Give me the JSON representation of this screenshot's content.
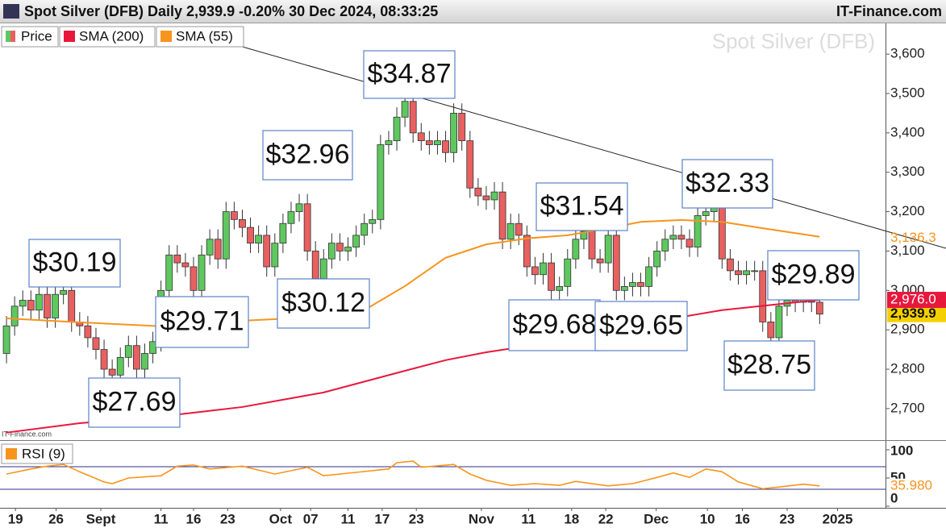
{
  "header": {
    "title": "Spot Silver (DFB) Daily 2,939.9 -0.20% 30 Dec 2024, 08:33:25",
    "brand": "IT-Finance.com"
  },
  "chart_data": [
    {
      "type": "candlestick",
      "watermark": "Spot Silver (DFB)",
      "credit": "IT-Finance.com",
      "up_color": "#5ec85e",
      "down_color": "#e86060",
      "xlim": [
        -0.8,
        108.1
      ],
      "ylim": [
        2622,
        3676
      ],
      "xticks": [
        {
          "value": 1.1,
          "label": "19"
        },
        {
          "value": 6.1,
          "label": "26"
        },
        {
          "value": 11.6,
          "label": "Sept"
        },
        {
          "value": 19,
          "label": "11"
        },
        {
          "value": 23,
          "label": "16"
        },
        {
          "value": 27.2,
          "label": "23"
        },
        {
          "value": 33.7,
          "label": "Oct"
        },
        {
          "value": 37.4,
          "label": "07"
        },
        {
          "value": 42,
          "label": "11"
        },
        {
          "value": 46.2,
          "label": "17"
        },
        {
          "value": 50.4,
          "label": "23"
        },
        {
          "value": 58.4,
          "label": "Nov"
        },
        {
          "value": 64.2,
          "label": "11"
        },
        {
          "value": 69.5,
          "label": "18"
        },
        {
          "value": 73.7,
          "label": "22"
        },
        {
          "value": 79.9,
          "label": "Dec"
        },
        {
          "value": 86.2,
          "label": "10"
        },
        {
          "value": 90.5,
          "label": "16"
        },
        {
          "value": 96,
          "label": "23"
        },
        {
          "value": 102.2,
          "label": "2025"
        }
      ],
      "yticks": [
        {
          "value": 2700,
          "label": "2,700"
        },
        {
          "value": 2800,
          "label": "2,800"
        },
        {
          "value": 2900,
          "label": "2,900"
        },
        {
          "value": 3000,
          "label": "3,000"
        },
        {
          "value": 3100,
          "label": "3,100"
        },
        {
          "value": 3200,
          "label": "3,200"
        },
        {
          "value": 3300,
          "label": "3,300"
        },
        {
          "value": 3400,
          "label": "3,400"
        },
        {
          "value": 3500,
          "label": "3,500"
        },
        {
          "value": 3600,
          "label": "3,600"
        }
      ],
      "series": [
        {
          "name": "Price",
          "color": "#f5d000",
          "end_label": "2,939.9",
          "x": [
            0,
            1,
            2,
            3,
            4,
            5,
            6,
            7,
            8,
            9,
            10,
            11,
            12,
            13,
            14,
            15,
            16,
            17,
            18,
            19,
            20,
            21,
            22,
            23,
            24,
            25,
            26,
            27,
            28,
            29,
            30,
            31,
            32,
            33,
            34,
            35,
            36,
            37,
            38,
            39,
            40,
            41,
            42,
            43,
            44,
            45,
            46,
            47,
            48,
            49,
            50,
            51,
            52,
            53,
            54,
            55,
            56,
            57,
            58,
            59,
            60,
            61,
            62,
            63,
            64,
            65,
            66,
            67,
            68,
            69,
            70,
            71,
            72,
            73,
            74,
            75,
            76,
            77,
            78,
            79,
            80,
            81,
            82,
            83,
            84,
            85,
            86,
            87,
            88,
            89,
            90,
            91,
            92,
            93,
            94,
            95,
            96,
            97,
            98,
            99,
            100
          ],
          "open": [
            2840,
            2910,
            2960,
            2975,
            2950,
            2990,
            2930,
            2990,
            3000,
            2920,
            2910,
            2880,
            2850,
            2800,
            2785,
            2830,
            2860,
            2800,
            2840,
            2870,
            3000,
            3090,
            3070,
            3060,
            3000,
            3090,
            3130,
            3080,
            3200,
            3180,
            3160,
            3120,
            3140,
            3060,
            3120,
            3170,
            3200,
            3220,
            3100,
            3030,
            3080,
            3120,
            3100,
            3110,
            3140,
            3170,
            3180,
            3370,
            3380,
            3440,
            3480,
            3400,
            3380,
            3370,
            3380,
            3350,
            3450,
            3380,
            3260,
            3240,
            3230,
            3250,
            3130,
            3170,
            3140,
            3060,
            3040,
            3070,
            3000,
            3010,
            3080,
            3130,
            3150,
            3080,
            3070,
            3140,
            3000,
            3010,
            3020,
            3010,
            3060,
            3100,
            3130,
            3140,
            3130,
            3110,
            3190,
            3200,
            3210,
            3080,
            3050,
            3040,
            3050,
            3050,
            2920,
            2880,
            2960,
            2975,
            2970,
            2980,
            2970
          ],
          "high": [
            2935,
            2985,
            3000,
            3000,
            3015,
            3015,
            3015,
            3025,
            3025,
            2945,
            2935,
            2905,
            2875,
            2825,
            2855,
            2885,
            2885,
            2865,
            2895,
            3025,
            3115,
            3115,
            3095,
            3085,
            3115,
            3155,
            3155,
            3225,
            3225,
            3205,
            3185,
            3165,
            3165,
            3145,
            3195,
            3225,
            3245,
            3245,
            3125,
            3105,
            3145,
            3145,
            3135,
            3165,
            3195,
            3205,
            3395,
            3405,
            3465,
            3505,
            3505,
            3425,
            3405,
            3405,
            3405,
            3475,
            3475,
            3405,
            3285,
            3265,
            3275,
            3275,
            3195,
            3195,
            3165,
            3085,
            3095,
            3095,
            3035,
            3105,
            3155,
            3175,
            3175,
            3105,
            3165,
            3165,
            3035,
            3045,
            3045,
            3085,
            3125,
            3155,
            3165,
            3165,
            3155,
            3215,
            3225,
            3235,
            3235,
            3105,
            3075,
            3075,
            3075,
            3075,
            2945,
            2985,
            3000,
            3000,
            3005,
            3005,
            2995
          ],
          "low": [
            2815,
            2885,
            2935,
            2925,
            2925,
            2905,
            2905,
            2965,
            2895,
            2885,
            2855,
            2825,
            2775,
            2760,
            2760,
            2805,
            2775,
            2775,
            2815,
            2845,
            2975,
            3045,
            3035,
            2975,
            2975,
            3065,
            3055,
            3055,
            3155,
            3135,
            3095,
            3095,
            3035,
            3035,
            3095,
            3145,
            3175,
            3075,
            3005,
            3005,
            3055,
            3075,
            3075,
            3085,
            3115,
            3145,
            3155,
            3345,
            3355,
            3415,
            3375,
            3355,
            3345,
            3345,
            3325,
            3325,
            3355,
            3235,
            3215,
            3205,
            3205,
            3105,
            3105,
            3115,
            3035,
            3015,
            3015,
            2975,
            2975,
            2985,
            3055,
            3105,
            3055,
            3045,
            3045,
            2975,
            2975,
            2985,
            2985,
            2985,
            3035,
            3075,
            3105,
            3105,
            3085,
            3085,
            3165,
            3175,
            3055,
            3025,
            3015,
            3015,
            3025,
            2895,
            2855,
            2855,
            2935,
            2945,
            2945,
            2945,
            2914.9
          ],
          "close": [
            2910,
            2960,
            2975,
            2950,
            2990,
            2930,
            2990,
            3000,
            2920,
            2910,
            2880,
            2850,
            2800,
            2785,
            2830,
            2860,
            2800,
            2840,
            2870,
            3000,
            3090,
            3070,
            3060,
            3000,
            3090,
            3130,
            3080,
            3200,
            3180,
            3160,
            3120,
            3140,
            3060,
            3120,
            3170,
            3200,
            3220,
            3100,
            3030,
            3080,
            3120,
            3100,
            3110,
            3140,
            3170,
            3180,
            3370,
            3380,
            3440,
            3480,
            3400,
            3380,
            3370,
            3380,
            3350,
            3450,
            3380,
            3260,
            3240,
            3230,
            3250,
            3130,
            3170,
            3140,
            3060,
            3040,
            3070,
            3000,
            3010,
            3080,
            3130,
            3150,
            3080,
            3070,
            3140,
            3000,
            3010,
            3020,
            3010,
            3060,
            3100,
            3130,
            3140,
            3130,
            3110,
            3190,
            3200,
            3210,
            3080,
            3050,
            3040,
            3050,
            3050,
            2920,
            2880,
            2960,
            2975,
            2970,
            2980,
            2970,
            2939.9
          ]
        },
        {
          "name": "SMA (200)",
          "color": "#e8173c",
          "end_label": "2,976.0",
          "x": [
            0,
            9,
            19,
            29,
            39,
            49,
            54,
            59,
            69,
            78,
            88,
            100
          ],
          "values": [
            2639,
            2663,
            2680,
            2704,
            2741,
            2796,
            2823,
            2843,
            2874,
            2915,
            2950,
            2976
          ]
        },
        {
          "name": "SMA (55)",
          "color": "#f7941d",
          "end_label": "3,136.3",
          "x": [
            0,
            9,
            19,
            29,
            39,
            44,
            49,
            54,
            59,
            64,
            69,
            74,
            78,
            83,
            88,
            93,
            100
          ],
          "values": [
            2929,
            2919,
            2909,
            2923,
            2933,
            2950,
            3011,
            3083,
            3117,
            3132,
            3140,
            3158,
            3174,
            3179,
            3174,
            3158,
            3136.3
          ]
        }
      ],
      "annotations": [
        "$34.87",
        "$32.96",
        "$30.19",
        "$29.71",
        "$27.69",
        "$30.12",
        "$31.54",
        "$29.68",
        "$29.65",
        "$32.33",
        "$29.89",
        "$28.75"
      ]
    },
    {
      "type": "line",
      "xlim": [
        -0.8,
        108.1
      ],
      "ylim": [
        0,
        100
      ],
      "yticks": [
        0,
        50,
        100
      ],
      "levels": [
        70,
        30
      ],
      "level_color": "#2e2e8a",
      "series": [
        {
          "name": "RSI (9)",
          "color": "#f7941d",
          "end_label": "35.980",
          "x": [
            0,
            3,
            5,
            7,
            9,
            12,
            13,
            15,
            19,
            21,
            23,
            25,
            29,
            33,
            37,
            39,
            43,
            47,
            48,
            50,
            51,
            55,
            57,
            59,
            62,
            65,
            68,
            70,
            74,
            77,
            80,
            82,
            84,
            86,
            88,
            90,
            93,
            95,
            98,
            100
          ],
          "values": [
            57,
            66,
            71,
            74,
            61,
            43,
            40,
            50,
            54,
            71,
            73,
            66,
            71,
            57,
            69,
            54,
            60,
            66,
            77,
            80,
            69,
            74,
            57,
            46,
            37,
            40,
            37,
            44,
            36,
            40,
            51,
            59,
            51,
            66,
            61,
            43,
            31,
            34,
            39,
            35.98
          ]
        }
      ]
    }
  ]
}
